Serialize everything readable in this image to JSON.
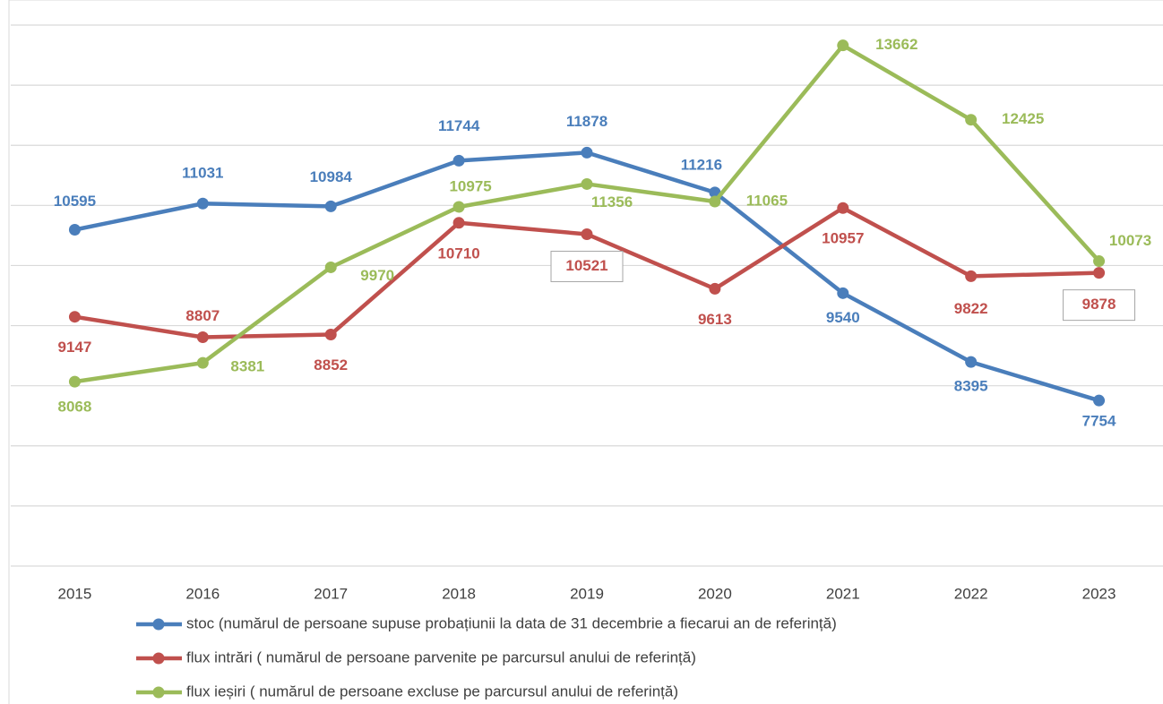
{
  "chart_data": {
    "type": "line",
    "categories": [
      "2015",
      "2016",
      "2017",
      "2018",
      "2019",
      "2020",
      "2021",
      "2022",
      "2023"
    ],
    "series": [
      {
        "name": "stoc (numărul de persoane supuse probațiunii la data de 31 decembrie a fiecarui an de referință)",
        "color": "#4a7ebb",
        "values": [
          10595,
          11031,
          10984,
          11744,
          11878,
          11216,
          9540,
          8395,
          7754
        ]
      },
      {
        "name": "flux intrări ( numărul de persoane parvenite pe parcursul anului de referință)",
        "color": "#c0504d",
        "values": [
          9147,
          8807,
          8852,
          10710,
          10521,
          9613,
          10957,
          9822,
          9878
        ]
      },
      {
        "name": "flux ieșiri ( numărul de persoane excluse pe parcursul anului de referință)",
        "color": "#9bbb59",
        "values": [
          8068,
          8381,
          9970,
          10975,
          11356,
          11065,
          13662,
          12425,
          10073
        ]
      }
    ],
    "ylim": [
      5000,
      14000
    ],
    "yticks": [
      5000,
      6000,
      7000,
      8000,
      9000,
      10000,
      11000,
      12000,
      13000,
      14000
    ],
    "grid": true
  }
}
